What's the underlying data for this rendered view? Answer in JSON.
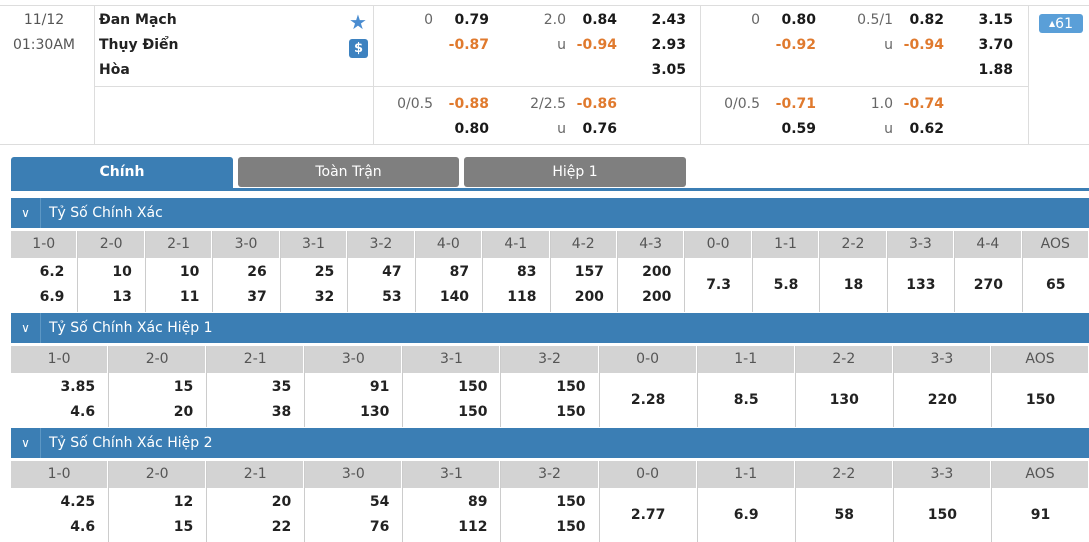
{
  "match": {
    "date": "11/12",
    "time": "01:30AM",
    "home": "Đan Mạch",
    "away": "Thụy Điển",
    "draw": "Hòa",
    "more_count": "61",
    "ft": {
      "row1": {
        "hdp": "0",
        "home": "0.79",
        "away": "-0.87",
        "ou": "2.0",
        "over": "0.84",
        "u": "u",
        "under": "-0.94",
        "x1": "2.43",
        "x2": "2.93",
        "xd": "3.05"
      },
      "row2": {
        "hdp": "0/0.5",
        "home": "-0.88",
        "away": "0.80",
        "ou": "2/2.5",
        "over": "-0.86",
        "u": "u",
        "under": "0.76"
      }
    },
    "h1": {
      "row1": {
        "hdp": "0",
        "home": "0.80",
        "away": "-0.92",
        "ou": "0.5/1",
        "over": "0.82",
        "u": "u",
        "under": "-0.94",
        "x1": "3.15",
        "x2": "3.70",
        "xd": "1.88"
      },
      "row2": {
        "hdp": "0/0.5",
        "home": "-0.71",
        "away": "0.59",
        "ou": "1.0",
        "over": "-0.74",
        "u": "u",
        "under": "0.62"
      }
    }
  },
  "tabs": [
    {
      "label": "Chính",
      "active": true
    },
    {
      "label": "Toàn Trận"
    },
    {
      "label": "Hiệp 1"
    }
  ],
  "sections": [
    {
      "title": "Tỷ Số Chính Xác",
      "cols": [
        [
          "1-0",
          "6.2",
          "6.9"
        ],
        [
          "2-0",
          "10",
          "13"
        ],
        [
          "2-1",
          "10",
          "11"
        ],
        [
          "3-0",
          "26",
          "37"
        ],
        [
          "3-1",
          "25",
          "32"
        ],
        [
          "3-2",
          "47",
          "53"
        ],
        [
          "4-0",
          "87",
          "140"
        ],
        [
          "4-1",
          "83",
          "118"
        ],
        [
          "4-2",
          "157",
          "200"
        ],
        [
          "4-3",
          "200",
          "200"
        ],
        [
          "0-0",
          "7.3"
        ],
        [
          "1-1",
          "5.8"
        ],
        [
          "2-2",
          "18"
        ],
        [
          "3-3",
          "133"
        ],
        [
          "4-4",
          "270"
        ],
        [
          "AOS",
          "65"
        ]
      ]
    },
    {
      "title": "Tỷ Số Chính Xác Hiệp 1",
      "cols": [
        [
          "1-0",
          "3.85",
          "4.6"
        ],
        [
          "2-0",
          "15",
          "20"
        ],
        [
          "2-1",
          "35",
          "38"
        ],
        [
          "3-0",
          "91",
          "130"
        ],
        [
          "3-1",
          "150",
          "150"
        ],
        [
          "3-2",
          "150",
          "150"
        ],
        [
          "0-0",
          "2.28"
        ],
        [
          "1-1",
          "8.5"
        ],
        [
          "2-2",
          "130"
        ],
        [
          "3-3",
          "220"
        ],
        [
          "AOS",
          "150"
        ]
      ]
    },
    {
      "title": "Tỷ Số Chính Xác Hiệp 2",
      "cols": [
        [
          "1-0",
          "4.25",
          "4.6"
        ],
        [
          "2-0",
          "12",
          "15"
        ],
        [
          "2-1",
          "20",
          "22"
        ],
        [
          "3-0",
          "54",
          "76"
        ],
        [
          "3-1",
          "89",
          "112"
        ],
        [
          "3-2",
          "150",
          "150"
        ],
        [
          "0-0",
          "2.77"
        ],
        [
          "1-1",
          "6.9"
        ],
        [
          "2-2",
          "58"
        ],
        [
          "3-3",
          "150"
        ],
        [
          "AOS",
          "91"
        ]
      ]
    }
  ],
  "colors": {
    "accent": "#3b7eb4",
    "negative": "#e07a2e",
    "tab_inactive": "#7f7f7f"
  }
}
